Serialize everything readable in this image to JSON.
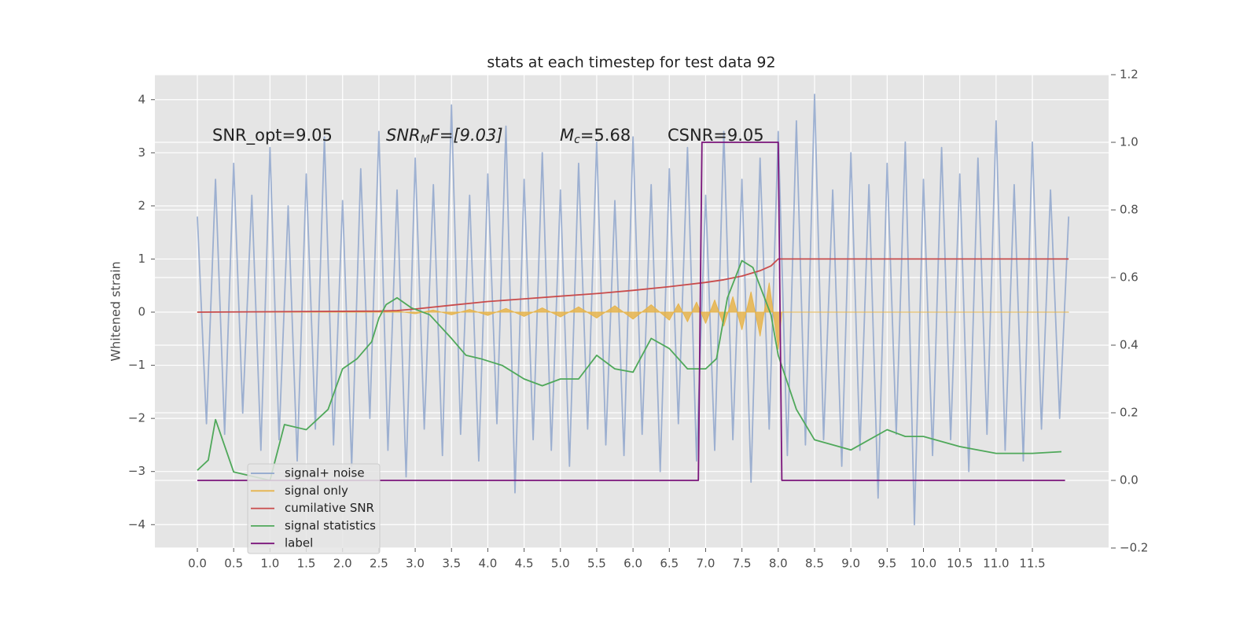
{
  "chart_data": {
    "type": "line",
    "title": "stats at each timestep for test data 92",
    "y_label": "Whitened strain",
    "xlim": [
      -0.585,
      12.55
    ],
    "ylim": [
      -4.44,
      4.47
    ],
    "y2lim": [
      -0.2,
      1.2
    ],
    "xticks": [
      {
        "value": 0,
        "label": "0.0"
      },
      {
        "value": 0.5,
        "label": "0.5"
      },
      {
        "value": 1,
        "label": "1.0"
      },
      {
        "value": 1.5,
        "label": "1.5"
      },
      {
        "value": 2,
        "label": "2.0"
      },
      {
        "value": 2.5,
        "label": "2.5"
      },
      {
        "value": 3,
        "label": "3.0"
      },
      {
        "value": 3.5,
        "label": "3.5"
      },
      {
        "value": 4,
        "label": "4.0"
      },
      {
        "value": 4.5,
        "label": "4.5"
      },
      {
        "value": 5,
        "label": "5.0"
      },
      {
        "value": 5.5,
        "label": "5.5"
      },
      {
        "value": 6,
        "label": "6.0"
      },
      {
        "value": 6.5,
        "label": "6.5"
      },
      {
        "value": 7,
        "label": "7.0"
      },
      {
        "value": 7.5,
        "label": "7.5"
      },
      {
        "value": 8,
        "label": "8.0"
      },
      {
        "value": 8.5,
        "label": "8.5"
      },
      {
        "value": 9,
        "label": "9.0"
      },
      {
        "value": 9.5,
        "label": "9.5"
      },
      {
        "value": 10,
        "label": "10.0"
      },
      {
        "value": 10.5,
        "label": "10.5"
      },
      {
        "value": 11,
        "label": "11.0"
      },
      {
        "value": 11.5,
        "label": "11.5"
      }
    ],
    "yticks": [
      {
        "value": -4,
        "label": "−4"
      },
      {
        "value": -3,
        "label": "−3"
      },
      {
        "value": -2,
        "label": "−2"
      },
      {
        "value": -1,
        "label": "−1"
      },
      0,
      1,
      2,
      3,
      4
    ],
    "y2ticks": [
      {
        "value": -0.2,
        "label": "−0.2"
      },
      {
        "value": 0,
        "label": "0.0"
      },
      0.2,
      0.4,
      0.6,
      0.8,
      {
        "value": 1,
        "label": "1.0"
      },
      1.2
    ],
    "grid": true,
    "legend": "lower left",
    "annotations": [
      {
        "text": "SNR_opt=9.05"
      },
      {
        "parts": [
          "SNR",
          "M",
          "F=[9.03]"
        ]
      },
      {
        "parts": [
          "M",
          "c",
          "=5.68"
        ]
      },
      {
        "text": "CSNR=9.05"
      }
    ],
    "series": [
      {
        "name": "signal+ noise",
        "color": "#8fa6cc",
        "fill": false,
        "x": [
          0,
          0.125,
          0.25,
          0.375,
          0.5,
          0.625,
          0.75,
          0.875,
          1,
          1.125,
          1.25,
          1.375,
          1.5,
          1.625,
          1.75,
          1.875,
          2,
          2.125,
          2.25,
          2.375,
          2.5,
          2.625,
          2.75,
          2.875,
          3,
          3.125,
          3.25,
          3.375,
          3.5,
          3.625,
          3.75,
          3.875,
          4,
          4.125,
          4.25,
          4.375,
          4.5,
          4.625,
          4.75,
          4.875,
          5,
          5.125,
          5.25,
          5.375,
          5.5,
          5.625,
          5.75,
          5.875,
          6,
          6.125,
          6.25,
          6.375,
          6.5,
          6.625,
          6.75,
          6.875,
          7,
          7.125,
          7.25,
          7.375,
          7.5,
          7.625,
          7.75,
          7.875,
          8,
          8.125,
          8.25,
          8.375,
          8.5,
          8.625,
          8.75,
          8.875,
          9,
          9.125,
          9.25,
          9.375,
          9.5,
          9.625,
          9.75,
          9.875,
          10,
          10.125,
          10.25,
          10.375,
          10.5,
          10.625,
          10.75,
          10.875,
          11,
          11.125,
          11.25,
          11.375,
          11.5,
          11.625,
          11.75,
          11.875,
          12
        ],
        "values": [
          1.8,
          -2.1,
          2.5,
          -2.3,
          2.8,
          -1.9,
          2.2,
          -2.6,
          3.1,
          -2.4,
          2.0,
          -2.8,
          2.6,
          -2.2,
          3.3,
          -2.5,
          2.1,
          -2.9,
          2.7,
          -2.0,
          3.4,
          -2.6,
          2.3,
          -3.1,
          2.9,
          -2.2,
          2.4,
          -2.7,
          3.9,
          -2.3,
          2.2,
          -2.8,
          2.6,
          -2.1,
          3.5,
          -3.4,
          2.5,
          -2.4,
          3.0,
          -2.6,
          2.3,
          -2.9,
          2.8,
          -2.2,
          3.2,
          -2.5,
          2.1,
          -2.7,
          3.3,
          -2.3,
          2.4,
          -3.0,
          2.7,
          -2.1,
          3.1,
          -2.8,
          2.2,
          -2.6,
          3.4,
          -2.4,
          2.5,
          -3.2,
          2.9,
          -2.2,
          3.4,
          -2.7,
          3.6,
          -2.5,
          4.1,
          -2.4,
          2.3,
          -2.9,
          3.0,
          -2.6,
          2.4,
          -3.5,
          2.8,
          -2.3,
          3.2,
          -4.0,
          2.5,
          -2.7,
          3.1,
          -2.4,
          2.6,
          -3.0,
          2.9,
          -2.3,
          3.6,
          -2.6,
          2.4,
          -2.8,
          3.2,
          -2.2,
          2.3,
          -2.0,
          1.8
        ]
      },
      {
        "name": "signal only",
        "color": "#e6b44c",
        "fill": true,
        "x": [
          0,
          2.5,
          2.75,
          3.0,
          3.25,
          3.5,
          3.75,
          4.0,
          4.25,
          4.5,
          4.75,
          5.0,
          5.25,
          5.5,
          5.75,
          6.0,
          6.25,
          6.5,
          6.625,
          6.75,
          6.875,
          7.0,
          7.125,
          7.25,
          7.375,
          7.5,
          7.625,
          7.75,
          7.875,
          8.0,
          8.05,
          12
        ],
        "values": [
          0,
          0,
          0.02,
          -0.03,
          0.04,
          -0.05,
          0.05,
          -0.06,
          0.07,
          -0.08,
          0.08,
          -0.09,
          0.1,
          -0.11,
          0.12,
          -0.13,
          0.14,
          -0.15,
          0.16,
          -0.18,
          0.19,
          -0.21,
          0.23,
          -0.26,
          0.29,
          -0.33,
          0.38,
          -0.45,
          0.55,
          -0.7,
          0,
          0
        ]
      },
      {
        "name": "cumilative SNR",
        "color": "#c94c4c",
        "fill": false,
        "x": [
          0,
          2.5,
          2.75,
          3.0,
          3.5,
          4.0,
          4.5,
          5.0,
          5.5,
          6.0,
          6.5,
          7.0,
          7.25,
          7.5,
          7.75,
          7.9,
          8.0,
          12
        ],
        "values": [
          0,
          0.02,
          0.03,
          0.06,
          0.13,
          0.2,
          0.25,
          0.3,
          0.35,
          0.41,
          0.48,
          0.56,
          0.61,
          0.68,
          0.78,
          0.87,
          1.0,
          1.0
        ]
      },
      {
        "name": "signal statistics",
        "color": "#4fa85a",
        "fill": false,
        "axis": "y2",
        "x": [
          0,
          0.15,
          0.25,
          0.5,
          1.0,
          1.2,
          1.5,
          1.8,
          2.0,
          2.2,
          2.4,
          2.5,
          2.6,
          2.75,
          2.95,
          3.2,
          3.5,
          3.7,
          3.9,
          4.2,
          4.5,
          4.75,
          5.0,
          5.25,
          5.5,
          5.75,
          6.0,
          6.25,
          6.5,
          6.75,
          7.0,
          7.15,
          7.3,
          7.5,
          7.65,
          7.9,
          8.0,
          8.25,
          8.5,
          9.0,
          9.5,
          9.75,
          10.0,
          10.5,
          11.0,
          11.5,
          11.9
        ],
        "values": [
          0.03,
          0.06,
          0.18,
          0.025,
          0,
          0.165,
          0.15,
          0.21,
          0.33,
          0.36,
          0.41,
          0.48,
          0.52,
          0.54,
          0.51,
          0.49,
          0.42,
          0.37,
          0.36,
          0.34,
          0.3,
          0.28,
          0.3,
          0.3,
          0.37,
          0.33,
          0.32,
          0.42,
          0.39,
          0.33,
          0.33,
          0.36,
          0.54,
          0.65,
          0.63,
          0.49,
          0.37,
          0.21,
          0.12,
          0.09,
          0.15,
          0.13,
          0.13,
          0.1,
          0.08,
          0.08,
          0.085
        ]
      },
      {
        "name": "label",
        "color": "#7b157b",
        "fill": false,
        "axis": "y2",
        "x": [
          0,
          6.9,
          6.95,
          8.0,
          8.05,
          11.95
        ],
        "values": [
          0,
          0,
          1,
          1,
          0,
          0
        ]
      }
    ]
  }
}
